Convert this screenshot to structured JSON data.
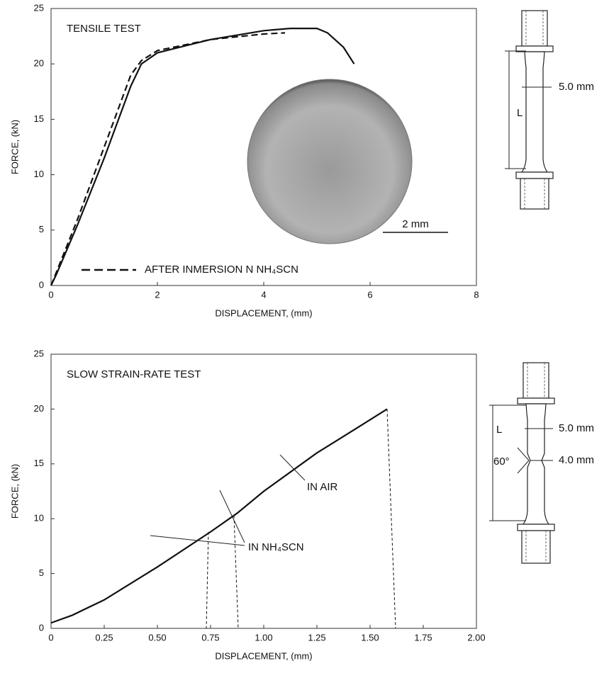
{
  "chart_data": [
    {
      "type": "line",
      "title": "TENSILE TEST",
      "xlabel": "DISPLACEMENT, (mm)",
      "ylabel": "FORCE, (kN)",
      "xlim": [
        0,
        8
      ],
      "xticks": [
        0,
        2,
        4,
        6,
        8
      ],
      "ylim": [
        0,
        25
      ],
      "yticks": [
        0,
        5,
        10,
        15,
        20,
        25
      ],
      "series": [
        {
          "color": "#111111",
          "dash": false,
          "x": [
            0,
            0.1,
            0.5,
            1.0,
            1.5,
            1.7,
            2,
            3,
            4,
            4.5,
            5.0,
            5.2,
            5.5,
            5.7
          ],
          "values": [
            0,
            1,
            5.5,
            11.5,
            18,
            20,
            21,
            22.2,
            23,
            23.2,
            23.2,
            22.8,
            21.5,
            20
          ]
        },
        {
          "name": "AFTER INMERSION N NH₄SCN",
          "color": "#111111",
          "dash": true,
          "x": [
            0,
            0.1,
            0.5,
            1.0,
            1.5,
            1.7,
            2,
            3,
            4,
            4.4
          ],
          "values": [
            0,
            1.2,
            6,
            12.5,
            19,
            20.3,
            21.2,
            22.2,
            22.7,
            22.8
          ]
        }
      ],
      "annotations": [
        "2 mm"
      ],
      "specimen_labels": [
        "5.0 mm",
        "L"
      ]
    },
    {
      "type": "line",
      "title": "SLOW STRAIN-RATE TEST",
      "xlabel": "DISPLACEMENT, (mm)",
      "ylabel": "FORCE, (kN)",
      "xlim": [
        0,
        2
      ],
      "xticks": [
        0,
        0.25,
        {
          "value": 0.5,
          "label": "0.50"
        },
        0.75,
        {
          "value": 1,
          "label": "1.00"
        },
        1.25,
        {
          "value": 1.5,
          "label": "1.50"
        },
        1.75,
        {
          "value": 2,
          "label": "2.00"
        }
      ],
      "ylim": [
        0,
        25
      ],
      "yticks": [
        0,
        5,
        10,
        15,
        20,
        25
      ],
      "series": [
        {
          "color": "#111111",
          "dash": false,
          "x": [
            0,
            0.1,
            0.25,
            0.5,
            0.75,
            0.875,
            1.0,
            1.25,
            1.35,
            1.58
          ],
          "values": [
            0.5,
            1.2,
            2.6,
            5.6,
            8.8,
            10.5,
            12.5,
            16,
            17.2,
            20
          ]
        },
        {
          "color": "#111111",
          "dash": true,
          "x": [
            0.74,
            0.73
          ],
          "values": [
            8.8,
            0
          ]
        },
        {
          "color": "#111111",
          "dash": true,
          "x": [
            0.86,
            0.88
          ],
          "values": [
            10.3,
            0
          ]
        },
        {
          "color": "#111111",
          "dash": true,
          "x": [
            1.58,
            1.62
          ],
          "values": [
            20,
            0
          ]
        }
      ],
      "annotations": [
        "IN AIR",
        "IN NH₄SCN"
      ],
      "specimen_labels": [
        "5.0 mm",
        "4.0 mm",
        "60°",
        "L"
      ]
    }
  ]
}
